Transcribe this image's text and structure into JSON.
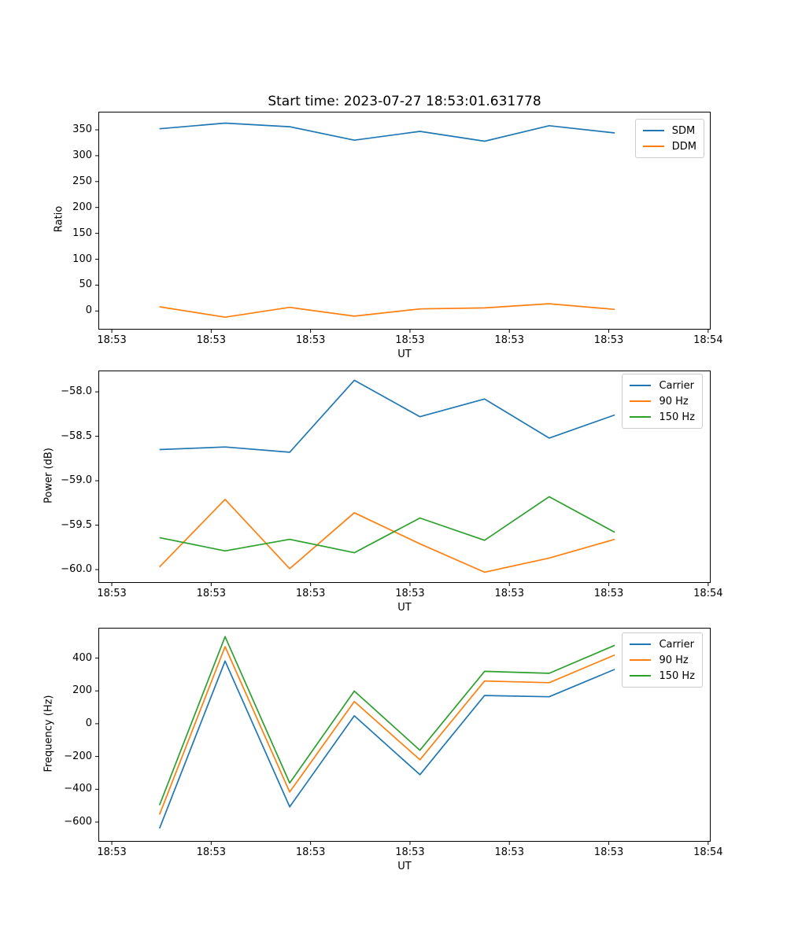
{
  "figure": {
    "background": "#ffffff",
    "spine_color": "#000000",
    "legend_border_color": "#cccccc"
  },
  "chart_data": [
    {
      "type": "line",
      "title": "Start time: 2023-07-27 18:53:01.631778",
      "xlabel": "UT",
      "ylabel": "Ratio",
      "grid": false,
      "legend_position": "upper right",
      "x_seconds_after_1853": [
        4.8,
        11.4,
        17.9,
        24.4,
        31.0,
        37.5,
        44.0,
        50.6
      ],
      "xlim": [
        -1.35,
        60.25
      ],
      "ylim": [
        -36,
        385
      ],
      "xticks": [
        0,
        10,
        20,
        30,
        40,
        50,
        60
      ],
      "xticklabels": [
        "18:53",
        "18:53",
        "18:53",
        "18:53",
        "18:53",
        "18:53",
        "18:54"
      ],
      "yticks": [
        0,
        50,
        100,
        150,
        200,
        250,
        300,
        350
      ],
      "yticklabels": [
        "0",
        "50",
        "100",
        "150",
        "200",
        "250",
        "300",
        "350"
      ],
      "series": [
        {
          "name": "SDM",
          "color": "#1f77b4",
          "values": [
            352,
            363,
            356,
            330,
            347,
            328,
            358,
            344
          ]
        },
        {
          "name": "DDM",
          "color": "#ff7f0e",
          "values": [
            8,
            -12,
            7,
            -10,
            4,
            6,
            14,
            3
          ]
        }
      ]
    },
    {
      "type": "line",
      "title": "",
      "xlabel": "UT",
      "ylabel": "Power (dB)",
      "grid": false,
      "legend_position": "upper right",
      "x_seconds_after_1853": [
        4.8,
        11.4,
        17.9,
        24.4,
        31.0,
        37.5,
        44.0,
        50.6
      ],
      "xlim": [
        -1.35,
        60.25
      ],
      "ylim": [
        -60.15,
        -57.76
      ],
      "xticks": [
        0,
        10,
        20,
        30,
        40,
        50,
        60
      ],
      "xticklabels": [
        "18:53",
        "18:53",
        "18:53",
        "18:53",
        "18:53",
        "18:53",
        "18:54"
      ],
      "yticks": [
        -60.0,
        -59.5,
        -59.0,
        -58.5,
        -58.0
      ],
      "yticklabels": [
        "−60.0",
        "−59.5",
        "−59.0",
        "−58.5",
        "−58.0"
      ],
      "series": [
        {
          "name": "Carrier",
          "color": "#1f77b4",
          "values": [
            -58.65,
            -58.62,
            -58.68,
            -57.87,
            -58.28,
            -58.08,
            -58.52,
            -58.26
          ]
        },
        {
          "name": "90 Hz",
          "color": "#ff7f0e",
          "values": [
            -59.97,
            -59.21,
            -59.99,
            -59.36,
            -59.71,
            -60.03,
            -59.87,
            -59.66
          ]
        },
        {
          "name": "150 Hz",
          "color": "#2ca02c",
          "values": [
            -59.64,
            -59.79,
            -59.66,
            -59.81,
            -59.42,
            -59.67,
            -59.18,
            -59.58
          ]
        }
      ]
    },
    {
      "type": "line",
      "title": "",
      "xlabel": "UT",
      "ylabel": "Frequency (Hz)",
      "grid": false,
      "legend_position": "upper right",
      "x_seconds_after_1853": [
        4.8,
        11.4,
        17.9,
        24.4,
        31.0,
        37.5,
        44.0,
        50.6
      ],
      "xlim": [
        -1.35,
        60.25
      ],
      "ylim": [
        -720,
        585
      ],
      "xticks": [
        0,
        10,
        20,
        30,
        40,
        50,
        60
      ],
      "xticklabels": [
        "18:53",
        "18:53",
        "18:53",
        "18:53",
        "18:53",
        "18:53",
        "18:54"
      ],
      "yticks": [
        -600,
        -400,
        -200,
        0,
        200,
        400
      ],
      "yticklabels": [
        "−600",
        "−400",
        "−200",
        "0",
        "200",
        "400"
      ],
      "series": [
        {
          "name": "Carrier",
          "color": "#1f77b4",
          "values": [
            -639,
            382,
            -507,
            48,
            -311,
            172,
            164,
            331
          ]
        },
        {
          "name": "90 Hz",
          "color": "#ff7f0e",
          "values": [
            -554,
            470,
            -417,
            135,
            -220,
            260,
            250,
            419
          ]
        },
        {
          "name": "150 Hz",
          "color": "#2ca02c",
          "values": [
            -497,
            531,
            -362,
            199,
            -162,
            319,
            307,
            478
          ]
        }
      ]
    }
  ]
}
